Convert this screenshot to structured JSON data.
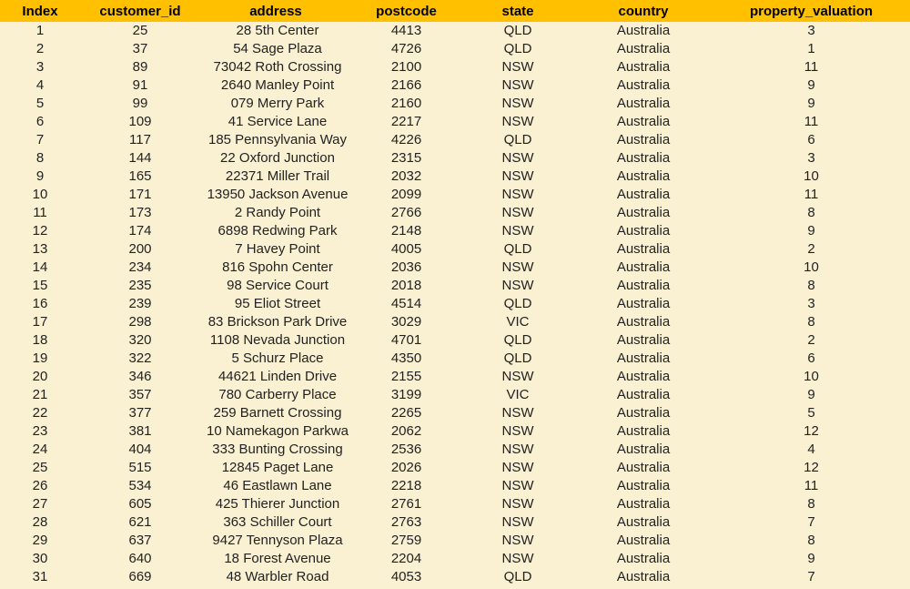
{
  "table": {
    "header_bg": "#ffc000",
    "body_bg": "#faf0d2",
    "columns": [
      "Index",
      "customer_id",
      "address",
      "postcode",
      "state",
      "country",
      "property_valuation"
    ],
    "rows": [
      [
        "1",
        "25",
        "28 5th Center",
        "4413",
        "QLD",
        "Australia",
        "3"
      ],
      [
        "2",
        "37",
        "54 Sage Plaza",
        "4726",
        "QLD",
        "Australia",
        "1"
      ],
      [
        "3",
        "89",
        "73042 Roth Crossing",
        "2100",
        "NSW",
        "Australia",
        "11"
      ],
      [
        "4",
        "91",
        "2640 Manley Point",
        "2166",
        "NSW",
        "Australia",
        "9"
      ],
      [
        "5",
        "99",
        "079 Merry Park",
        "2160",
        "NSW",
        "Australia",
        "9"
      ],
      [
        "6",
        "109",
        "41 Service Lane",
        "2217",
        "NSW",
        "Australia",
        "11"
      ],
      [
        "7",
        "117",
        "185 Pennsylvania Way",
        "4226",
        "QLD",
        "Australia",
        "6"
      ],
      [
        "8",
        "144",
        "22 Oxford Junction",
        "2315",
        "NSW",
        "Australia",
        "3"
      ],
      [
        "9",
        "165",
        "22371 Miller Trail",
        "2032",
        "NSW",
        "Australia",
        "10"
      ],
      [
        "10",
        "171",
        "13950 Jackson Avenue",
        "2099",
        "NSW",
        "Australia",
        "11"
      ],
      [
        "11",
        "173",
        "2 Randy Point",
        "2766",
        "NSW",
        "Australia",
        "8"
      ],
      [
        "12",
        "174",
        "6898 Redwing Park",
        "2148",
        "NSW",
        "Australia",
        "9"
      ],
      [
        "13",
        "200",
        "7 Havey Point",
        "4005",
        "QLD",
        "Australia",
        "2"
      ],
      [
        "14",
        "234",
        "816 Spohn Center",
        "2036",
        "NSW",
        "Australia",
        "10"
      ],
      [
        "15",
        "235",
        "98 Service Court",
        "2018",
        "NSW",
        "Australia",
        "8"
      ],
      [
        "16",
        "239",
        "95 Eliot Street",
        "4514",
        "QLD",
        "Australia",
        "3"
      ],
      [
        "17",
        "298",
        "83 Brickson Park Drive",
        "3029",
        "VIC",
        "Australia",
        "8"
      ],
      [
        "18",
        "320",
        "1108 Nevada Junction",
        "4701",
        "QLD",
        "Australia",
        "2"
      ],
      [
        "19",
        "322",
        "5 Schurz Place",
        "4350",
        "QLD",
        "Australia",
        "6"
      ],
      [
        "20",
        "346",
        "44621 Linden Drive",
        "2155",
        "NSW",
        "Australia",
        "10"
      ],
      [
        "21",
        "357",
        "780 Carberry Place",
        "3199",
        "VIC",
        "Australia",
        "9"
      ],
      [
        "22",
        "377",
        "259 Barnett Crossing",
        "2265",
        "NSW",
        "Australia",
        "5"
      ],
      [
        "23",
        "381",
        "10 Namekagon Parkwa",
        "2062",
        "NSW",
        "Australia",
        "12"
      ],
      [
        "24",
        "404",
        "333 Bunting Crossing",
        "2536",
        "NSW",
        "Australia",
        "4"
      ],
      [
        "25",
        "515",
        "12845 Paget Lane",
        "2026",
        "NSW",
        "Australia",
        "12"
      ],
      [
        "26",
        "534",
        "46 Eastlawn Lane",
        "2218",
        "NSW",
        "Australia",
        "11"
      ],
      [
        "27",
        "605",
        "425 Thierer Junction",
        "2761",
        "NSW",
        "Australia",
        "8"
      ],
      [
        "28",
        "621",
        "363 Schiller Court",
        "2763",
        "NSW",
        "Australia",
        "7"
      ],
      [
        "29",
        "637",
        "9427 Tennyson Plaza",
        "2759",
        "NSW",
        "Australia",
        "8"
      ],
      [
        "30",
        "640",
        "18 Forest Avenue",
        "2204",
        "NSW",
        "Australia",
        "9"
      ],
      [
        "31",
        "669",
        "48 Warbler Road",
        "4053",
        "QLD",
        "Australia",
        "7"
      ]
    ]
  }
}
